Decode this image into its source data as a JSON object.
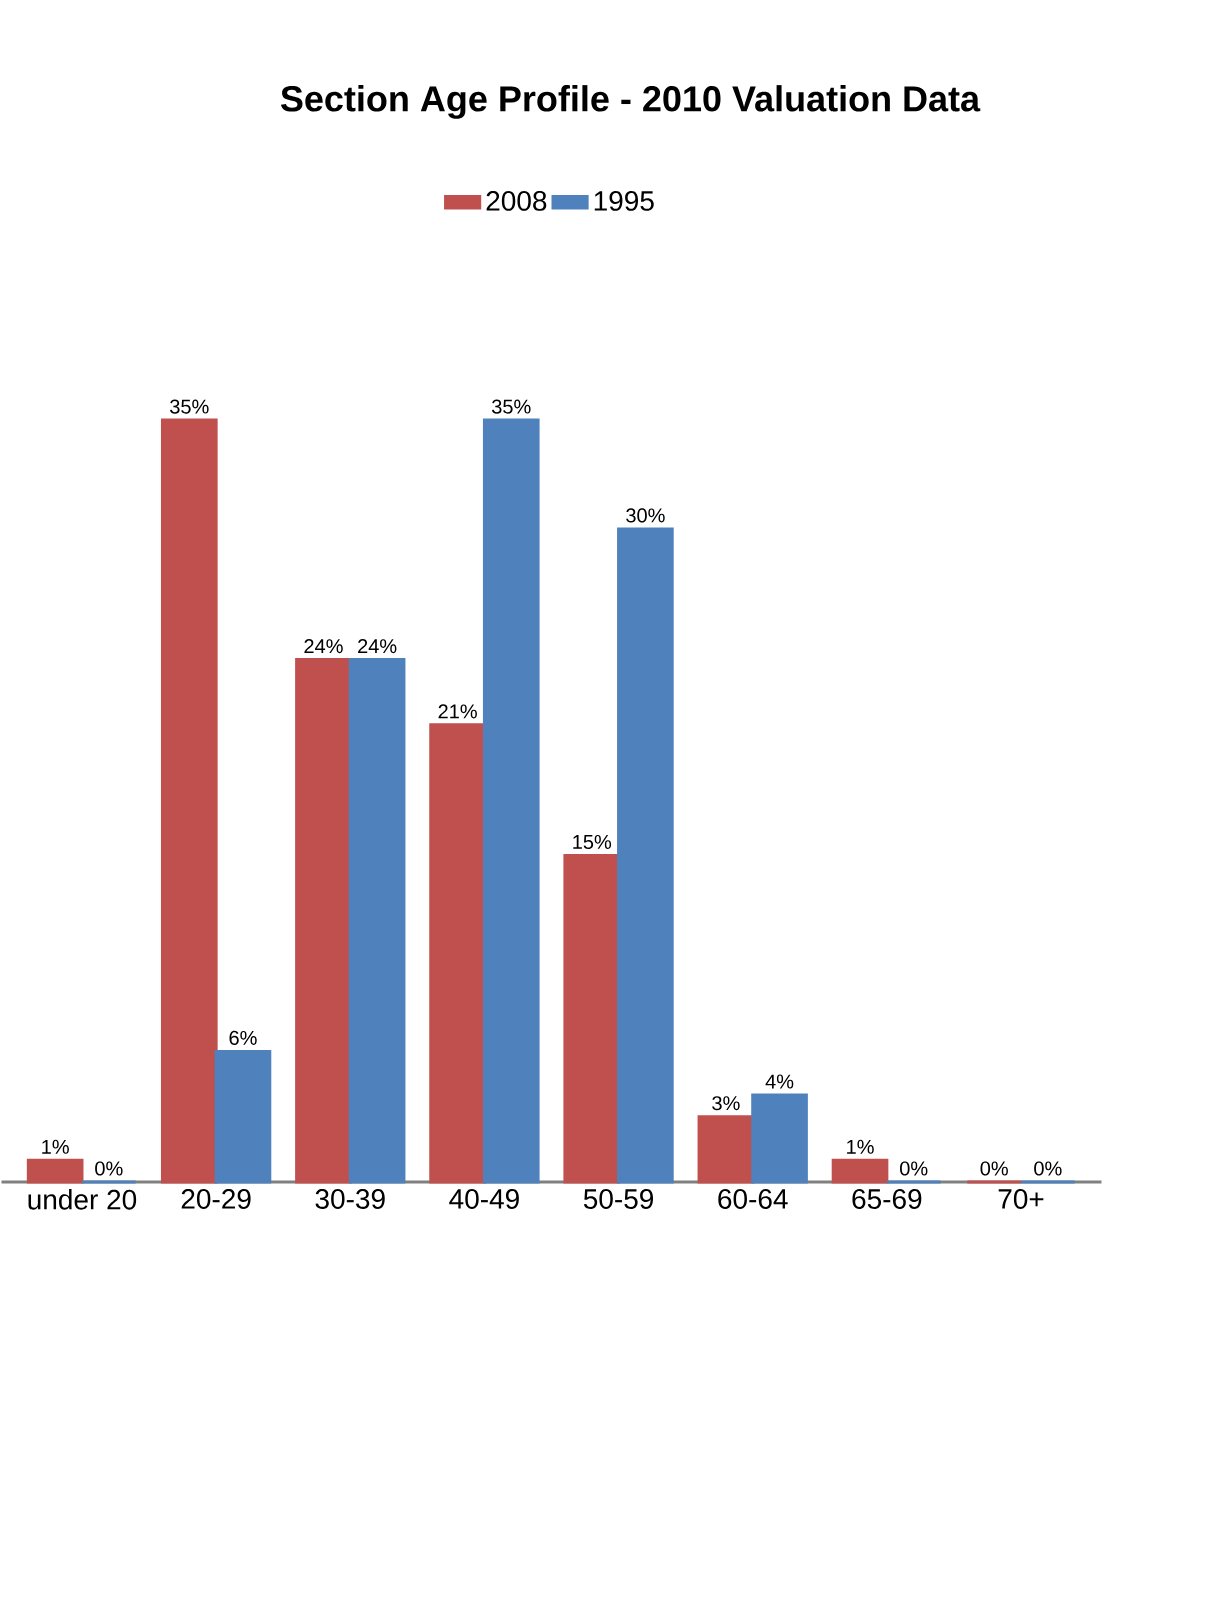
{
  "chart_data": {
    "type": "bar",
    "title": "Section Age Profile - 2010 Valuation Data",
    "categories": [
      "under 20",
      "20-29",
      "30-39",
      "40-49",
      "50-59",
      "60-64",
      "65-69",
      "70+"
    ],
    "series": [
      {
        "name": "2008",
        "color": "#c0504d",
        "values": [
          1,
          35,
          24,
          21,
          15,
          3,
          1,
          0
        ],
        "value_labels": [
          "1%",
          "35%",
          "24%",
          "21%",
          "15%",
          "3%",
          "1%",
          "0%"
        ]
      },
      {
        "name": "1995",
        "color": "#4f81bd",
        "values": [
          0,
          6,
          24,
          35,
          30,
          4,
          0,
          0
        ],
        "value_labels": [
          "0%",
          "6%",
          "24%",
          "35%",
          "30%",
          "4%",
          "0%",
          "0%"
        ]
      }
    ],
    "legend": "top"
  }
}
